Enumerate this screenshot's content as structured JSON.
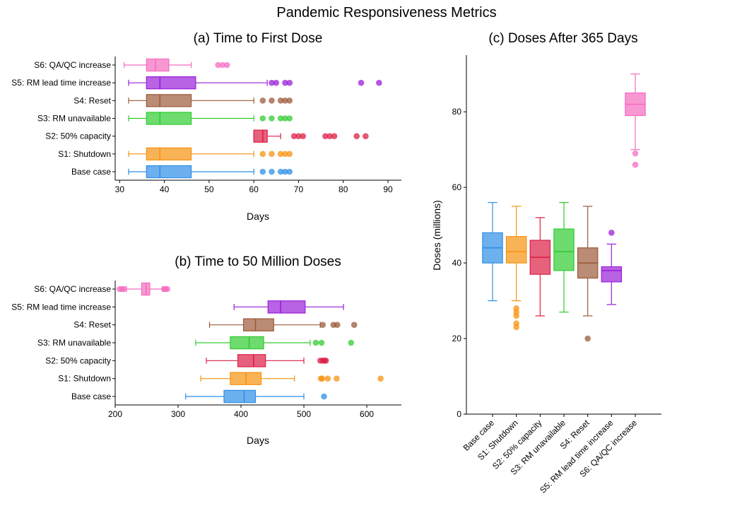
{
  "figure_title": "Pandemic Responsiveness Metrics",
  "chart_data": [
    {
      "id": "a",
      "type": "boxplot",
      "orientation": "horizontal",
      "title": "(a) Time to First Dose",
      "xlabel": "Days",
      "ylabel": "",
      "xlim": [
        29,
        93
      ],
      "xticks": [
        30,
        40,
        50,
        60,
        70,
        80,
        90
      ],
      "categories": [
        "Base case",
        "S1: Shutdown",
        "S2: 50% capacity",
        "S3: RM unavailable",
        "S4: Reset",
        "S5: RM lead time increase",
        "S6: QA/QC increase"
      ],
      "series": [
        {
          "name": "Base case",
          "color": "#2e8fe6",
          "whisker_low": 32,
          "q1": 36,
          "median": 39,
          "q3": 46,
          "whisker_high": 60,
          "outliers": [
            62,
            64,
            66,
            67,
            68
          ]
        },
        {
          "name": "S1: Shutdown",
          "color": "#f7930f",
          "whisker_low": 32,
          "q1": 36,
          "median": 39,
          "q3": 46,
          "whisker_high": 60,
          "outliers": [
            62,
            64,
            66,
            67,
            68
          ]
        },
        {
          "name": "S2: 50% capacity",
          "color": "#dc1f44",
          "whisker_low": 60,
          "q1": 60,
          "median": 62,
          "q3": 63,
          "whisker_high": 66,
          "outliers": [
            69,
            70,
            71,
            76,
            77,
            78,
            83,
            85
          ]
        },
        {
          "name": "S3: RM unavailable",
          "color": "#30cc30",
          "whisker_low": 32,
          "q1": 36,
          "median": 39,
          "q3": 46,
          "whisker_high": 60,
          "outliers": [
            62,
            64,
            66,
            67,
            68
          ]
        },
        {
          "name": "S4: Reset",
          "color": "#9c5a3a",
          "whisker_low": 32,
          "q1": 36,
          "median": 39,
          "q3": 46,
          "whisker_high": 60,
          "outliers": [
            62,
            64,
            66,
            67,
            68
          ]
        },
        {
          "name": "S5: RM lead time increase",
          "color": "#9a1fd8",
          "whisker_low": 32,
          "q1": 36,
          "median": 39,
          "q3": 47,
          "whisker_high": 63,
          "outliers": [
            64,
            65,
            67,
            68,
            84,
            88
          ]
        },
        {
          "name": "S6: QA/QC increase",
          "color": "#f56cc0",
          "whisker_low": 31,
          "q1": 36,
          "median": 38,
          "q3": 41,
          "whisker_high": 46,
          "outliers": [
            52,
            53,
            54
          ]
        }
      ]
    },
    {
      "id": "b",
      "type": "boxplot",
      "orientation": "horizontal",
      "title": "(b) Time to 50 Million Doses",
      "xlabel": "Days",
      "ylabel": "",
      "xlim": [
        200,
        655
      ],
      "xticks": [
        200,
        300,
        400,
        500,
        600
      ],
      "categories": [
        "Base case",
        "S1: Shutdown",
        "S2: 50% capacity",
        "S3: RM unavailable",
        "S4: Reset",
        "S5: RM lead time increase",
        "S6: QA/QC increase"
      ],
      "series": [
        {
          "name": "Base case",
          "color": "#2e8fe6",
          "whisker_low": 312,
          "q1": 373,
          "median": 405,
          "q3": 423,
          "whisker_high": 500,
          "outliers": [
            532
          ]
        },
        {
          "name": "S1: Shutdown",
          "color": "#f7930f",
          "whisker_low": 336,
          "q1": 383,
          "median": 408,
          "q3": 432,
          "whisker_high": 485,
          "outliers": [
            527,
            529,
            538,
            552,
            622
          ]
        },
        {
          "name": "S2: 50% capacity",
          "color": "#dc1f44",
          "whisker_low": 345,
          "q1": 395,
          "median": 420,
          "q3": 439,
          "whisker_high": 500,
          "outliers": [
            526,
            530,
            533,
            535
          ]
        },
        {
          "name": "S3: RM unavailable",
          "color": "#30cc30",
          "whisker_low": 328,
          "q1": 383,
          "median": 413,
          "q3": 436,
          "whisker_high": 510,
          "outliers": [
            519,
            528,
            575
          ]
        },
        {
          "name": "S4: Reset",
          "color": "#9c5a3a",
          "whisker_low": 350,
          "q1": 404,
          "median": 423,
          "q3": 452,
          "whisker_high": 526,
          "outliers": [
            530,
            547,
            553,
            580
          ]
        },
        {
          "name": "S5: RM lead time increase",
          "color": "#9a1fd8",
          "whisker_low": 389,
          "q1": 443,
          "median": 463,
          "q3": 502,
          "whisker_high": 563,
          "outliers": []
        },
        {
          "name": "S6: QA/QC increase",
          "color": "#f56cc0",
          "whisker_low": 218,
          "q1": 242,
          "median": 249,
          "q3": 255,
          "whisker_high": 275,
          "outliers": [
            207,
            211,
            214,
            278,
            280,
            283
          ]
        }
      ]
    },
    {
      "id": "c",
      "type": "boxplot",
      "orientation": "vertical",
      "title": "(c) Doses After 365 Days",
      "xlabel": "",
      "ylabel": "Doses (millions)",
      "ylim": [
        0,
        95
      ],
      "yticks": [
        0,
        20,
        40,
        60,
        80
      ],
      "categories": [
        "Base case",
        "S1: Shutdown",
        "S2: 50% capacity",
        "S3: RM unavailable",
        "S4: Reset",
        "S5: RM lead time increase",
        "S6: QA/QC increase"
      ],
      "series": [
        {
          "name": "Base case",
          "color": "#2e8fe6",
          "whisker_low": 30,
          "q1": 40,
          "median": 44,
          "q3": 48,
          "whisker_high": 56,
          "outliers": []
        },
        {
          "name": "S1: Shutdown",
          "color": "#f7930f",
          "whisker_low": 30,
          "q1": 40,
          "median": 43,
          "q3": 47,
          "whisker_high": 55,
          "outliers": [
            23,
            24,
            26,
            27,
            28
          ]
        },
        {
          "name": "S2: 50% capacity",
          "color": "#dc1f44",
          "whisker_low": 26,
          "q1": 37,
          "median": 41.5,
          "q3": 46,
          "whisker_high": 52,
          "outliers": []
        },
        {
          "name": "S3: RM unavailable",
          "color": "#30cc30",
          "whisker_low": 27,
          "q1": 38,
          "median": 43,
          "q3": 49,
          "whisker_high": 56,
          "outliers": []
        },
        {
          "name": "S4: Reset",
          "color": "#9c5a3a",
          "whisker_low": 26,
          "q1": 36,
          "median": 40,
          "q3": 44,
          "whisker_high": 55,
          "outliers": [
            20
          ]
        },
        {
          "name": "S5: RM lead time increase",
          "color": "#9a1fd8",
          "whisker_low": 29,
          "q1": 35,
          "median": 38,
          "q3": 39,
          "whisker_high": 45,
          "outliers": [
            48
          ]
        },
        {
          "name": "S6: QA/QC increase",
          "color": "#f56cc0",
          "whisker_low": 70,
          "q1": 79,
          "median": 82,
          "q3": 85,
          "whisker_high": 90,
          "outliers": [
            66,
            69
          ]
        }
      ]
    }
  ]
}
